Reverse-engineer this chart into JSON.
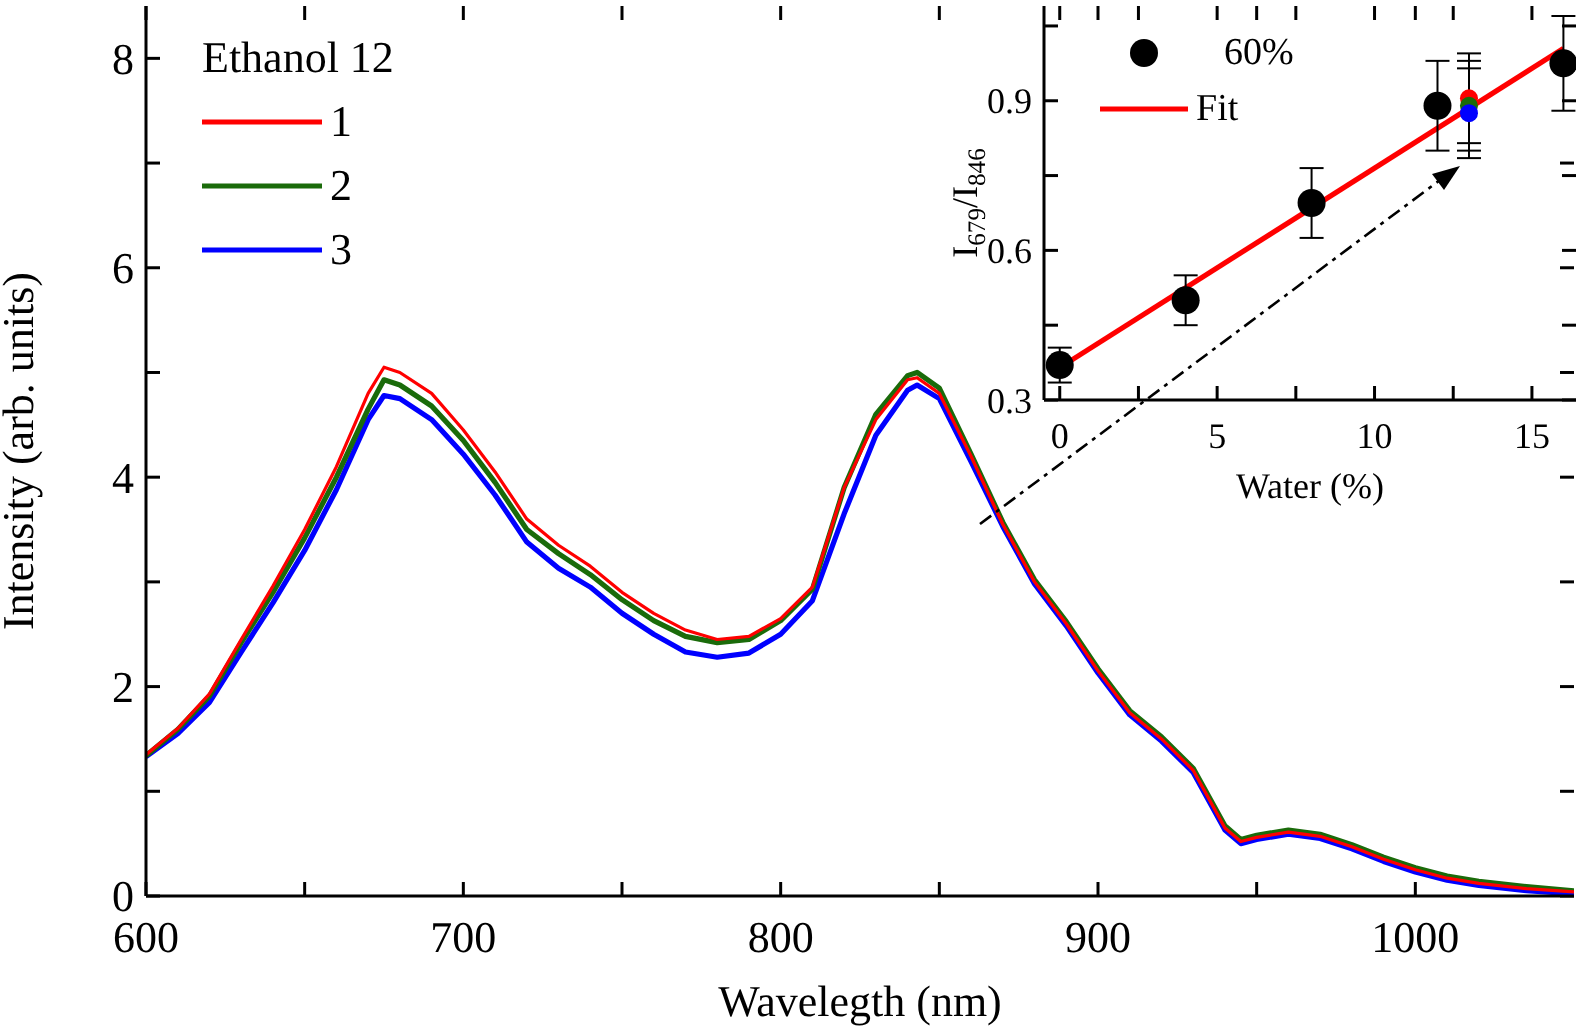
{
  "chart_data": [
    {
      "type": "line",
      "xlabel": "Wavelegth (nm)",
      "ylabel": "Intensity (arb. units)",
      "legend_title": "Ethanol 12",
      "legend": "top left",
      "xlim": [
        600,
        1050
      ],
      "ylim": [
        0,
        8.5
      ],
      "xticks": [
        600,
        {
          "value": 650,
          "label": null
        },
        700,
        {
          "value": 750,
          "label": null
        },
        800,
        {
          "value": 850,
          "label": null
        },
        900,
        {
          "value": 950,
          "label": null
        },
        1000
      ],
      "yticks": [
        0,
        {
          "value": 1,
          "label": null
        },
        2,
        {
          "value": 3,
          "label": null
        },
        4,
        {
          "value": 5,
          "label": null
        },
        6,
        {
          "value": 7,
          "label": null
        },
        8
      ],
      "x": [
        600,
        610,
        620,
        630,
        640,
        650,
        660,
        670,
        675,
        680,
        690,
        700,
        710,
        720,
        730,
        740,
        750,
        760,
        770,
        780,
        790,
        800,
        810,
        820,
        830,
        840,
        843,
        850,
        860,
        870,
        880,
        890,
        900,
        910,
        920,
        930,
        940,
        945,
        950,
        960,
        970,
        980,
        990,
        1000,
        1010,
        1020,
        1035,
        1050
      ],
      "series": [
        {
          "name": "1",
          "color": "#ff0000",
          "values": [
            1.35,
            1.6,
            1.93,
            2.45,
            2.96,
            3.5,
            4.1,
            4.8,
            5.05,
            5.0,
            4.8,
            4.45,
            4.05,
            3.6,
            3.35,
            3.15,
            2.9,
            2.7,
            2.54,
            2.45,
            2.48,
            2.65,
            2.95,
            3.9,
            4.55,
            4.93,
            4.95,
            4.8,
            4.2,
            3.55,
            3.0,
            2.6,
            2.15,
            1.75,
            1.5,
            1.2,
            0.65,
            0.52,
            0.56,
            0.61,
            0.57,
            0.47,
            0.35,
            0.25,
            0.17,
            0.12,
            0.07,
            0.04
          ]
        },
        {
          "name": "2",
          "color": "#1a6b0a",
          "values": [
            1.34,
            1.59,
            1.91,
            2.42,
            2.9,
            3.42,
            4.0,
            4.65,
            4.93,
            4.88,
            4.68,
            4.35,
            3.95,
            3.5,
            3.27,
            3.07,
            2.83,
            2.63,
            2.48,
            2.42,
            2.45,
            2.63,
            2.93,
            3.9,
            4.6,
            4.97,
            5.0,
            4.85,
            4.22,
            3.57,
            3.02,
            2.62,
            2.17,
            1.77,
            1.52,
            1.22,
            0.67,
            0.54,
            0.58,
            0.63,
            0.59,
            0.49,
            0.37,
            0.27,
            0.19,
            0.14,
            0.09,
            0.05
          ]
        },
        {
          "name": "3",
          "color": "#0000ff",
          "values": [
            1.33,
            1.55,
            1.85,
            2.33,
            2.8,
            3.3,
            3.88,
            4.55,
            4.78,
            4.75,
            4.55,
            4.22,
            3.83,
            3.38,
            3.13,
            2.95,
            2.7,
            2.5,
            2.33,
            2.28,
            2.32,
            2.5,
            2.82,
            3.65,
            4.4,
            4.83,
            4.88,
            4.75,
            4.15,
            3.53,
            2.98,
            2.58,
            2.13,
            1.73,
            1.48,
            1.18,
            0.63,
            0.5,
            0.54,
            0.59,
            0.55,
            0.45,
            0.33,
            0.23,
            0.15,
            0.1,
            0.05,
            0.02
          ]
        }
      ]
    },
    {
      "type": "scatter",
      "xlabel": "Water (%)",
      "ylabel": "I$_{679}$/I$_{846}$",
      "legend": "top left",
      "xlim": [
        -0.5,
        16.4
      ],
      "ylim": [
        0.3,
        1.09
      ],
      "xticks": [
        0,
        {
          "value": 2.5,
          "label": null
        },
        5,
        {
          "value": 7.5,
          "label": null
        },
        10,
        {
          "value": 12.5,
          "label": null
        },
        15
      ],
      "yticks": [
        0.3,
        {
          "value": 0.45,
          "label": null
        },
        0.6,
        {
          "value": 0.75,
          "label": null
        },
        0.9,
        {
          "value": 1.05,
          "label": null
        }
      ],
      "series": [
        {
          "name": "60%",
          "color": "#000000",
          "marker": "circle",
          "x": [
            0,
            4,
            8,
            12,
            16
          ],
          "values": [
            0.37,
            0.5,
            0.695,
            0.89,
            0.975
          ],
          "errors": [
            0.035,
            0.05,
            0.07,
            0.09,
            0.095
          ]
        },
        {
          "color": "#ff0000",
          "marker": "circle",
          "x": [
            13
          ],
          "values": [
            0.905
          ],
          "errors": [
            0.09
          ]
        },
        {
          "color": "#1a6b0a",
          "marker": "circle",
          "x": [
            13
          ],
          "values": [
            0.89
          ],
          "errors": [
            0.09
          ]
        },
        {
          "color": "#0000ff",
          "marker": "circle",
          "x": [
            13
          ],
          "values": [
            0.875
          ],
          "errors": [
            0.09
          ]
        },
        {
          "name": "Fit",
          "type": "line",
          "color": "#ff0000",
          "x": [
            0,
            16
          ],
          "values": [
            0.365,
            1.005
          ]
        }
      ]
    }
  ]
}
